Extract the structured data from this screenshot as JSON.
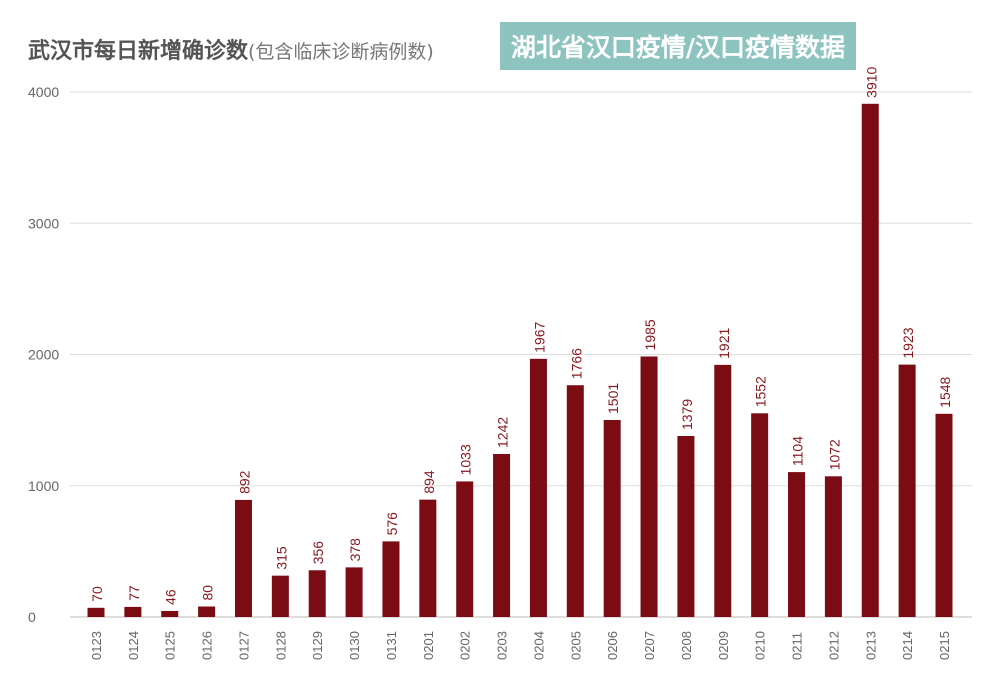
{
  "chart_data": {
    "type": "bar",
    "title": "武汉市每日新增确诊数",
    "subtitle": "(包含临床诊断病例数)",
    "categories": [
      "0123",
      "0124",
      "0125",
      "0126",
      "0127",
      "0128",
      "0129",
      "0130",
      "0131",
      "0201",
      "0202",
      "0203",
      "0204",
      "0205",
      "0206",
      "0207",
      "0208",
      "0209",
      "0210",
      "0211",
      "0212",
      "0213",
      "0214",
      "0215"
    ],
    "values": [
      70,
      77,
      46,
      80,
      892,
      315,
      356,
      378,
      576,
      894,
      1033,
      1242,
      1967,
      1766,
      1501,
      1985,
      1379,
      1921,
      1552,
      1104,
      1072,
      3910,
      1923,
      1548
    ],
    "yticks": [
      0,
      1000,
      2000,
      3000,
      4000
    ],
    "ylim": [
      0,
      4000
    ],
    "grid": true,
    "bar_color": "#7b0c14"
  },
  "banner": "湖北省汉口疫情/汉口疫情数据"
}
